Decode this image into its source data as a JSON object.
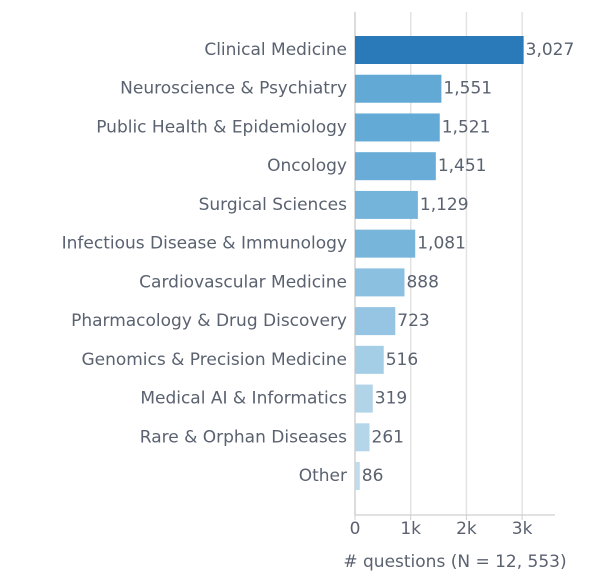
{
  "chart_data": {
    "type": "barh",
    "categories": [
      "Clinical Medicine",
      "Neuroscience & Psychiatry",
      "Public Health & Epidemiology",
      "Oncology",
      "Surgical Sciences",
      "Infectious Disease & Immunology",
      "Cardiovascular Medicine",
      "Pharmacology & Drug Discovery",
      "Genomics & Precision Medicine",
      "Medical AI & Informatics",
      "Rare & Orphan Diseases",
      "Other"
    ],
    "values": [
      3027,
      1551,
      1521,
      1451,
      1129,
      1081,
      888,
      723,
      516,
      319,
      261,
      86
    ],
    "value_labels": [
      "3,027",
      "1,551",
      "1,521",
      "1,451",
      "1,129",
      "1,081",
      "888",
      "723",
      "516",
      "319",
      "261",
      "86"
    ],
    "colors": [
      "#2a7aba",
      "#62a9d5",
      "#64aad6",
      "#68acd7",
      "#75b4da",
      "#78b5db",
      "#8bc0e0",
      "#95c5e2",
      "#a4cde6",
      "#b1d4e9",
      "#b5d6ea",
      "#c0dcec"
    ],
    "xlabel": "# questions (N = 12, 553)",
    "xlim": [
      0,
      3590
    ],
    "xticks": [
      0,
      {
        "value": 1000,
        "label": "1k"
      },
      {
        "value": 2000,
        "label": "2k"
      },
      {
        "value": 3000,
        "label": "3k"
      }
    ],
    "grid": true
  }
}
